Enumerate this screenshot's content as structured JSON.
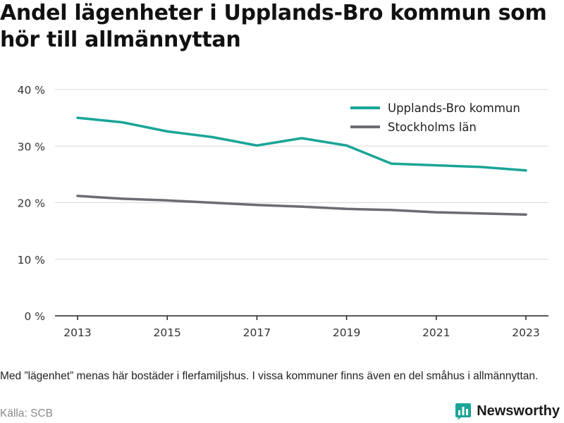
{
  "title": "Andel lägenheter i Upplands-Bro kommun som hör till allmännyttan",
  "note": "Med ”lägenhet” menas här bostäder i flerfamiljshus. I vissa kommuner finns även en del småhus i allmännyttan.",
  "source": "Källa: SCB",
  "brand": {
    "name": "Newsworthy",
    "icon": "bar-chart-logo-icon"
  },
  "colors": {
    "series_1": "#1aa597",
    "series_2": "#6d6b73",
    "brand": "#1aa597"
  },
  "chart_data": {
    "type": "line",
    "x": [
      2013,
      2014,
      2015,
      2016,
      2017,
      2018,
      2019,
      2020,
      2021,
      2022,
      2023
    ],
    "x_ticks": [
      "2013",
      "2015",
      "2017",
      "2019",
      "2021",
      "2023"
    ],
    "y_ticks": [
      "0 %",
      "10 %",
      "20 %",
      "30 %",
      "40 %"
    ],
    "ylim": [
      0,
      40
    ],
    "unit": "%",
    "grid": true,
    "legend_position": "top-right",
    "series": [
      {
        "name": "Upplands-Bro kommun",
        "values": [
          35.0,
          34.2,
          32.6,
          31.6,
          30.1,
          31.4,
          30.1,
          26.9,
          26.6,
          26.3,
          25.7
        ]
      },
      {
        "name": "Stockholms län",
        "values": [
          21.2,
          20.7,
          20.4,
          20.0,
          19.6,
          19.3,
          18.9,
          18.7,
          18.3,
          18.1,
          17.9
        ]
      }
    ]
  }
}
